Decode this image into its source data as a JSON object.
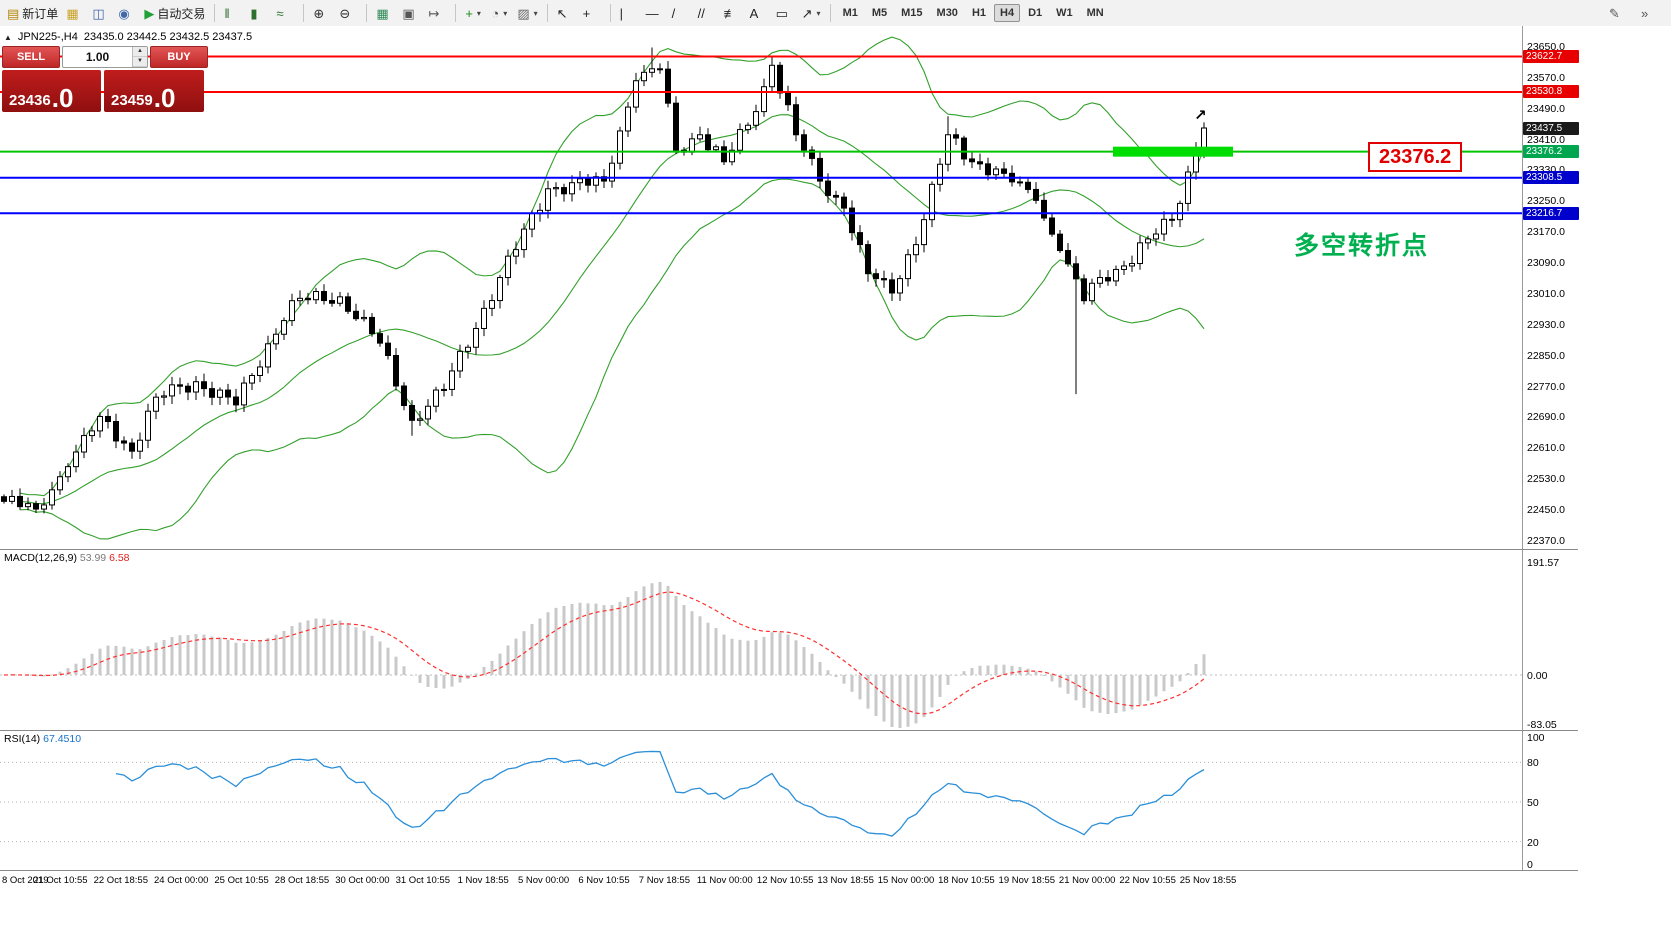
{
  "toolbar": {
    "caret_icon": "▾",
    "groups": [
      {
        "items": [
          {
            "name": "new-order-button",
            "icon": "new-order-icon",
            "glyph": "▤",
            "glyph_color": "#b8860b",
            "label": "新订单"
          },
          {
            "name": "market-watch-button",
            "icon": "market-watch-icon",
            "glyph": "▦",
            "glyph_color": "#c9a227"
          },
          {
            "name": "data-window-button",
            "icon": "data-window-icon",
            "glyph": "◫",
            "glyph_color": "#4169aa"
          },
          {
            "name": "navigator-button",
            "icon": "navigator-icon",
            "glyph": "◉",
            "glyph_color": "#4169aa"
          },
          {
            "name": "autotrading-button",
            "icon": "autotrading-icon",
            "glyph": "▶",
            "glyph_color": "#22a038",
            "label": "自动交易"
          }
        ]
      },
      {
        "items": [
          {
            "name": "ohlc-bars-button",
            "icon": "ohlc-bars-icon",
            "glyph": "‖",
            "glyph_color": "#2e6e2e"
          },
          {
            "name": "candlestick-chart-button",
            "icon": "candlestick-icon",
            "glyph": "▮",
            "glyph_color": "#2e6e2e"
          },
          {
            "name": "line-chart-button",
            "icon": "line-chart-icon",
            "glyph": "≈",
            "glyph_color": "#2e6e2e"
          }
        ]
      },
      {
        "items": [
          {
            "name": "zoom-in-button",
            "icon": "zoom-in-icon",
            "glyph": "⊕",
            "glyph_color": "#333333"
          },
          {
            "name": "zoom-out-button",
            "icon": "zoom-out-icon",
            "glyph": "⊖",
            "glyph_color": "#333333"
          }
        ]
      },
      {
        "items": [
          {
            "name": "tile-windows-button",
            "icon": "tile-windows-icon",
            "glyph": "▦",
            "glyph_color": "#2e8b57"
          },
          {
            "name": "arrange-windows-button",
            "icon": "arrange-windows-icon",
            "glyph": "▣",
            "glyph_color": "#555555"
          },
          {
            "name": "chart-shift-button",
            "icon": "chart-shift-icon",
            "glyph": "↦",
            "glyph_color": "#555555"
          }
        ]
      },
      {
        "items": [
          {
            "name": "indicators-button",
            "icon": "indicators-add-icon",
            "glyph": "+",
            "glyph_color": "#1a8f1a",
            "caret": true
          },
          {
            "name": "periods-button",
            "icon": "clock-icon",
            "glyph": "◔",
            "glyph_color": "#444444",
            "caret": true
          },
          {
            "name": "templates-button",
            "icon": "chart-template-icon",
            "glyph": "▨",
            "glyph_color": "#666666",
            "caret": true
          }
        ]
      },
      {
        "items": [
          {
            "name": "cursor-button",
            "icon": "cursor-icon",
            "glyph": "↖",
            "glyph_color": "#222222"
          },
          {
            "name": "crosshair-button",
            "icon": "crosshair-icon",
            "glyph": "+",
            "glyph_color": "#222222"
          }
        ]
      },
      {
        "items": [
          {
            "name": "vertical-line-button",
            "icon": "vertical-line-icon",
            "glyph": "|",
            "glyph_color": "#222222"
          },
          {
            "name": "horizontal-line-button",
            "icon": "horizontal-line-icon",
            "glyph": "—",
            "glyph_color": "#222222"
          },
          {
            "name": "trendline-button",
            "icon": "trendline-icon",
            "glyph": "/",
            "glyph_color": "#222222"
          },
          {
            "name": "channel-button",
            "icon": "channel-icon",
            "glyph": "//",
            "glyph_color": "#222222"
          },
          {
            "name": "fibonacci-button",
            "icon": "fibonacci-icon",
            "glyph": "≢",
            "glyph_color": "#222222"
          },
          {
            "name": "text-button",
            "icon": "text-icon",
            "glyph": "A",
            "glyph_color": "#222222"
          },
          {
            "name": "text-label-button",
            "icon": "text-label-icon",
            "glyph": "▭",
            "glyph_color": "#222222"
          },
          {
            "name": "arrows-button",
            "icon": "arrow-objects-icon",
            "glyph": "↗",
            "glyph_color": "#222222",
            "caret": true
          }
        ]
      },
      {
        "items": [
          {
            "type": "tf",
            "text": "M1"
          },
          {
            "type": "tf",
            "text": "M5"
          },
          {
            "type": "tf",
            "text": "M15"
          },
          {
            "type": "tf",
            "text": "M30"
          },
          {
            "type": "tf",
            "text": "H1"
          },
          {
            "type": "tf",
            "text": "H4",
            "active": true
          },
          {
            "type": "tf",
            "text": "D1"
          },
          {
            "type": "tf",
            "text": "W1"
          },
          {
            "type": "tf",
            "text": "MN"
          }
        ]
      }
    ],
    "right_items": [
      {
        "name": "edit-button",
        "icon": "pencil-icon",
        "glyph": "✎",
        "glyph_color": "#555555"
      },
      {
        "name": "toolbar-overflow-button",
        "icon": "overflow-chevrons-icon",
        "glyph": "»",
        "glyph_color": "#555555"
      }
    ]
  },
  "symbol_line": {
    "collapse_icon": "▲",
    "symbol": "JPN225-,H4",
    "ohlc": "23435.0 23442.5 23432.5 23437.5"
  },
  "trade_panel": {
    "sell_label": "SELL",
    "buy_label": "BUY",
    "volume": "1.00",
    "volume_up_icon": "▲",
    "volume_down_icon": "▼",
    "sell_price_main": "23436",
    "sell_price_pips": ".0",
    "buy_price_main": "23459",
    "buy_price_pips": ".0"
  },
  "annotations": {
    "price_callout": "23376.2",
    "turning_point_label": "多空转折点",
    "breakout_arrow_icon": "↗"
  },
  "main_axis": {
    "ticks": [
      "23650.0",
      "23570.0",
      "23490.0",
      "23410.0",
      "23330.0",
      "23250.0",
      "23170.0",
      "23090.0",
      "23010.0",
      "22930.0",
      "22850.0",
      "22770.0",
      "22690.0",
      "22610.0",
      "22530.0",
      "22450.0",
      "22370.0"
    ]
  },
  "price_tags": [
    {
      "text": "23437.5",
      "price": 23437.5,
      "bg": "#1a1a1a"
    },
    {
      "text": "23622.7",
      "price": 23622.7,
      "bg": "#e80000"
    },
    {
      "text": "23530.8",
      "price": 23530.8,
      "bg": "#e80000"
    },
    {
      "text": "23376.2",
      "price": 23376.2,
      "bg": "#00a64f"
    },
    {
      "text": "23308.5",
      "price": 23308.5,
      "bg": "#0000cc"
    },
    {
      "text": "23216.7",
      "price": 23216.7,
      "bg": "#0000cc"
    }
  ],
  "hlines": [
    {
      "price": 23622.7,
      "color": "#ff0000",
      "width": 2
    },
    {
      "price": 23530.8,
      "color": "#ff0000",
      "width": 2
    },
    {
      "price": 23376.2,
      "color": "#00c400",
      "width": 2,
      "highlight": true,
      "highlight_color": "#00dd00"
    },
    {
      "price": 23308.5,
      "color": "#0000ff",
      "width": 2
    },
    {
      "price": 23216.7,
      "color": "#0000ff",
      "width": 2
    }
  ],
  "macd_panel": {
    "label": "MACD(12,26,9)",
    "value_main": "53.99",
    "value_signal": "6.58",
    "axis": [
      "191.57",
      "0.00",
      "-83.05"
    ],
    "histogram_color": "#c9c9c9",
    "signal_color": "#ff3030"
  },
  "rsi_panel": {
    "label": "RSI(14)",
    "value": "67.4510",
    "axis": [
      "100",
      "80",
      "50",
      "20",
      "0"
    ],
    "levels": [
      80,
      50,
      20
    ],
    "line_color": "#2a8fd8"
  },
  "time_axis": {
    "labels": [
      "8 Oct 2019",
      "21 Oct 10:55",
      "22 Oct 18:55",
      "24 Oct 00:00",
      "25 Oct 10:55",
      "28 Oct 18:55",
      "30 Oct 00:00",
      "31 Oct 10:55",
      "1 Nov 18:55",
      "5 Nov 00:00",
      "6 Nov 10:55",
      "7 Nov 18:55",
      "11 Nov 00:00",
      "12 Nov 10:55",
      "13 Nov 18:55",
      "15 Nov 00:00",
      "18 Nov 10:55",
      "19 Nov 18:55",
      "21 Nov 00:00",
      "22 Nov 10:55",
      "25 Nov 18:55"
    ]
  },
  "chart_data": {
    "type": "candlestick",
    "symbol": "JPN225-",
    "timeframe": "H4",
    "ohlc_current": {
      "open": 23435.0,
      "high": 23442.5,
      "low": 23432.5,
      "close": 23437.5
    },
    "price_range_visible": [
      22370,
      23650
    ],
    "bars_visible": 151,
    "close_anchors": [
      [
        0,
        22470
      ],
      [
        4,
        22450
      ],
      [
        8,
        22560
      ],
      [
        12,
        22690
      ],
      [
        16,
        22600
      ],
      [
        19,
        22740
      ],
      [
        24,
        22780
      ],
      [
        29,
        22720
      ],
      [
        36,
        22990
      ],
      [
        42,
        23000
      ],
      [
        47,
        22880
      ],
      [
        51,
        22680
      ],
      [
        55,
        22760
      ],
      [
        62,
        23050
      ],
      [
        68,
        23280
      ],
      [
        75,
        23300
      ],
      [
        79,
        23560
      ],
      [
        82,
        23590
      ],
      [
        84,
        23380
      ],
      [
        87,
        23420
      ],
      [
        90,
        23350
      ],
      [
        94,
        23480
      ],
      [
        96,
        23600
      ],
      [
        99,
        23420
      ],
      [
        102,
        23300
      ],
      [
        105,
        23230
      ],
      [
        108,
        23060
      ],
      [
        111,
        23010
      ],
      [
        115,
        23200
      ],
      [
        118,
        23420
      ],
      [
        121,
        23350
      ],
      [
        125,
        23320
      ],
      [
        129,
        23250
      ],
      [
        132,
        23120
      ],
      [
        135,
        22990
      ],
      [
        137,
        23050
      ],
      [
        140,
        23080
      ],
      [
        143,
        23150
      ],
      [
        146,
        23200
      ],
      [
        149,
        23380
      ],
      [
        150,
        23437.5
      ]
    ],
    "high_overrides": {
      "81": 23646,
      "96": 23624,
      "118": 23468,
      "150": 23452
    },
    "low_overrides": {
      "51": 22640,
      "134": 22748
    },
    "indicators": [
      {
        "name": "Bollinger Bands",
        "period": 20,
        "deviation": 2,
        "color": "#33a02c"
      },
      {
        "name": "MACD",
        "params": "12,26,9",
        "current_values": [
          53.99,
          6.58
        ]
      },
      {
        "name": "RSI",
        "params": "14",
        "current_value": 67.451
      }
    ],
    "horizontal_levels": [
      23622.7,
      23530.8,
      23376.2,
      23308.5,
      23216.7
    ]
  }
}
